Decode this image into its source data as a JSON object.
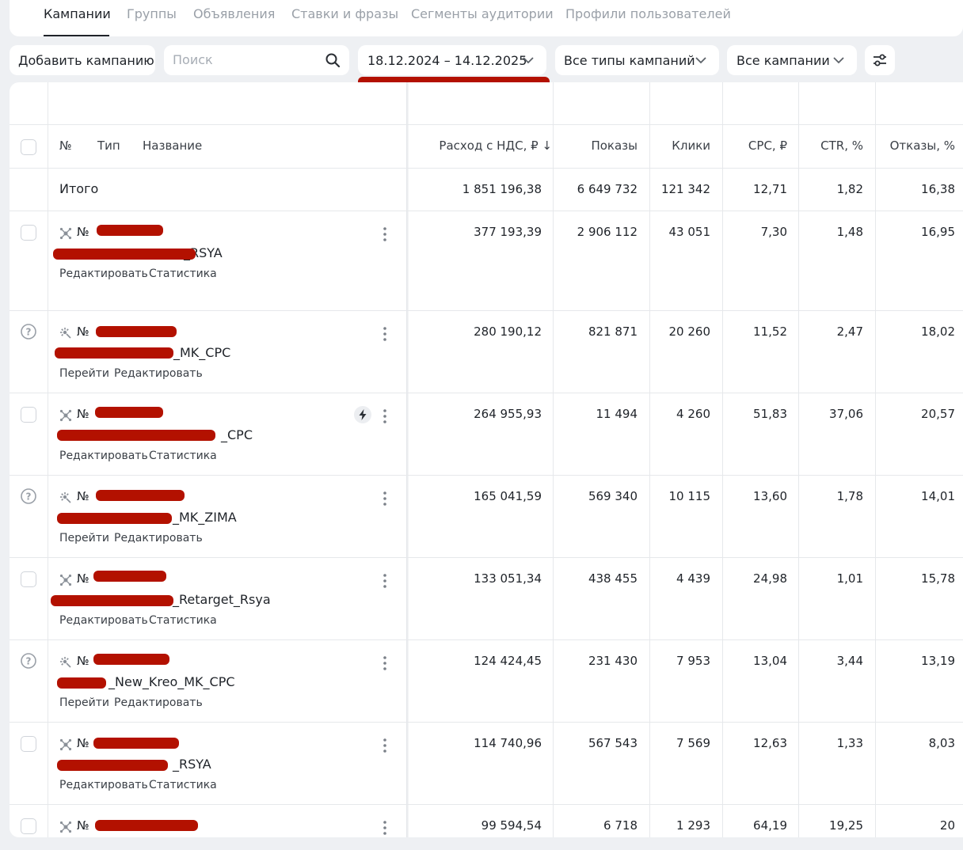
{
  "tabs": [
    "Кампании",
    "Группы",
    "Объявления",
    "Ставки и фразы",
    "Сегменты аудитории",
    "Профили пользователей"
  ],
  "toolbar": {
    "add_campaign": "Добавить кампанию",
    "search_placeholder": "Поиск",
    "date_range": "18.12.2024 – 14.12.2025",
    "campaign_types": "Все типы кампаний",
    "campaigns_filter": "Все кампании"
  },
  "columns": {
    "no": "№",
    "type": "Тип",
    "name": "Название",
    "spend": "Расход с НДС, ₽ ↓",
    "impressions": "Показы",
    "clicks": "Клики",
    "cpc": "CPC, ₽",
    "ctr": "CTR, %",
    "bounces": "Отказы, %"
  },
  "total": {
    "label": "Итого",
    "spend": "1 851 196,38",
    "impressions": "6 649 732",
    "clicks": "121 342",
    "cpc": "12,71",
    "ctr": "1,82",
    "bounces": "16,38"
  },
  "rows": [
    {
      "no": "№",
      "name": "_RSYA",
      "links": [
        "Редактировать",
        "Статистика"
      ],
      "spend": "377 193,39",
      "impressions": "2 906 112",
      "clicks": "43 051",
      "cpc": "7,30",
      "ctr": "1,48",
      "bounces": "16,95"
    },
    {
      "no": "№",
      "name": "_MK_CPC",
      "links": [
        "Перейти",
        "Редактировать"
      ],
      "spend": "280 190,12",
      "impressions": "821 871",
      "clicks": "20 260",
      "cpc": "11,52",
      "ctr": "2,47",
      "bounces": "18,02"
    },
    {
      "no": "№",
      "name": "_CPC",
      "links": [
        "Редактировать",
        "Статистика"
      ],
      "spend": "264 955,93",
      "impressions": "11 494",
      "clicks": "4 260",
      "cpc": "51,83",
      "ctr": "37,06",
      "bounces": "20,57"
    },
    {
      "no": "№",
      "name": "_MK_ZIMA",
      "links": [
        "Перейти",
        "Редактировать"
      ],
      "spend": "165 041,59",
      "impressions": "569 340",
      "clicks": "10 115",
      "cpc": "13,60",
      "ctr": "1,78",
      "bounces": "14,01"
    },
    {
      "no": "№",
      "name": "_Retarget_Rsya",
      "links": [
        "Редактировать",
        "Статистика"
      ],
      "spend": "133 051,34",
      "impressions": "438 455",
      "clicks": "4 439",
      "cpc": "24,98",
      "ctr": "1,01",
      "bounces": "15,78"
    },
    {
      "no": "№",
      "name": "_New_Kreo_MK_CPC",
      "links": [
        "Перейти",
        "Редактировать"
      ],
      "spend": "124 424,45",
      "impressions": "231 430",
      "clicks": "7 953",
      "cpc": "13,04",
      "ctr": "3,44",
      "bounces": "13,19"
    },
    {
      "no": "№",
      "name": "_RSYA",
      "links": [
        "Редактировать",
        "Статистика"
      ],
      "spend": "114 740,96",
      "impressions": "567 543",
      "clicks": "7 569",
      "cpc": "12,63",
      "ctr": "1,33",
      "bounces": "8,03"
    },
    {
      "no": "№",
      "name": "",
      "links": [],
      "spend": "99 594,54",
      "impressions": "6 718",
      "clicks": "1 293",
      "cpc": "64,19",
      "ctr": "19,25",
      "bounces": "20"
    }
  ]
}
